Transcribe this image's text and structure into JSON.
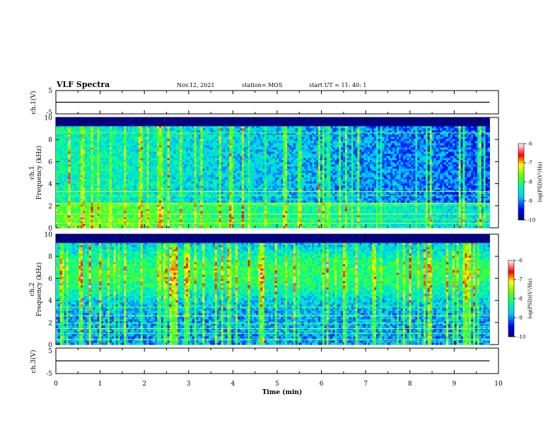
{
  "header": {
    "title": "VLF Spectra",
    "date": "Nov.12, 2021",
    "station": "station= MOS",
    "start": "start  UT =   11: 40: 1"
  },
  "chart_data": [
    {
      "type": "line",
      "panel": "ch1-waveform",
      "ylabel": "ch.1(V)",
      "ylim": [
        -5,
        5
      ],
      "yticks": [
        "5",
        "-5"
      ],
      "xlim": [
        0,
        10
      ],
      "series": [
        {
          "x": [
            0.0,
            9.8
          ],
          "values": [
            0,
            0
          ]
        }
      ]
    },
    {
      "type": "heatmap",
      "panel": "ch1-spectrogram",
      "ylabel_lines": [
        "ch.1",
        "Frequency (kHz)"
      ],
      "ylim": [
        0,
        10
      ],
      "yticks": [
        "0",
        "2",
        "4",
        "6",
        "8",
        "10"
      ],
      "xlim": [
        0,
        10
      ],
      "data_extent_min": 9.8,
      "colorbar": {
        "label": "log(PSD)(V²/Hz)",
        "range": [
          -10,
          -6
        ],
        "ticks": [
          "-6",
          "-7",
          "-8",
          "-9",
          "-10"
        ]
      }
    },
    {
      "type": "heatmap",
      "panel": "ch2-spectrogram",
      "ylabel_lines": [
        "ch.2",
        "Frequency (kHz)"
      ],
      "ylim": [
        0,
        10
      ],
      "yticks": [
        "0",
        "2",
        "4",
        "6",
        "8",
        "10"
      ],
      "xlim": [
        0,
        10
      ],
      "data_extent_min": 9.8,
      "colorbar": {
        "label": "log(PSD)(V²/Hz)",
        "range": [
          -10,
          -6
        ],
        "ticks": [
          "-6",
          "-7",
          "-8",
          "-9",
          "-10"
        ]
      }
    },
    {
      "type": "line",
      "panel": "ch3-waveform",
      "ylabel": "ch.3(V)",
      "ylim": [
        -5,
        5
      ],
      "yticks": [
        "5",
        "-5"
      ],
      "xlim": [
        0,
        10
      ],
      "series": [
        {
          "x": [
            0.0,
            9.8
          ],
          "values": [
            0,
            0
          ]
        }
      ]
    }
  ],
  "xaxis": {
    "label": "Time (min)",
    "ticks": [
      "0",
      "1",
      "2",
      "3",
      "4",
      "5",
      "6",
      "7",
      "8",
      "9",
      "10"
    ]
  }
}
